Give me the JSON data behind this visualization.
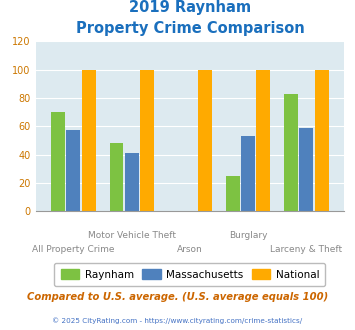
{
  "title_line1": "2019 Raynham",
  "title_line2": "Property Crime Comparison",
  "categories": [
    "All Property Crime",
    "Motor Vehicle Theft",
    "Arson",
    "Burglary",
    "Larceny & Theft"
  ],
  "raynham": [
    70,
    48,
    0,
    25,
    83
  ],
  "massachusetts": [
    57,
    41,
    0,
    53,
    59
  ],
  "national": [
    100,
    100,
    100,
    100,
    100
  ],
  "raynham_color": "#7dc242",
  "massachusetts_color": "#4f81bd",
  "national_color": "#ffaa00",
  "ylim": [
    0,
    120
  ],
  "yticks": [
    0,
    20,
    40,
    60,
    80,
    100,
    120
  ],
  "plot_bg_color": "#ddeaf0",
  "title_color": "#1a6fbd",
  "ytick_color": "#cc7700",
  "footer_text": "Compared to U.S. average. (U.S. average equals 100)",
  "footer_color": "#cc6600",
  "credit_text": "© 2025 CityRating.com - https://www.cityrating.com/crime-statistics/",
  "credit_color": "#4472c4",
  "legend_labels": [
    "Raynham",
    "Massachusetts",
    "National"
  ],
  "upper_xlabels": [
    [
      1,
      "Motor Vehicle Theft"
    ],
    [
      3,
      "Burglary"
    ]
  ],
  "lower_xlabels": [
    [
      0,
      "All Property Crime"
    ],
    [
      2,
      "Arson"
    ],
    [
      4,
      "Larceny & Theft"
    ]
  ]
}
